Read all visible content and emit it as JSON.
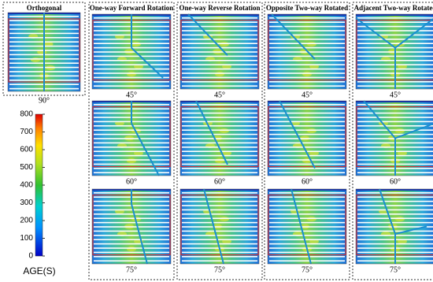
{
  "orthogonal": {
    "title": "Orthogonal",
    "angle": "90°"
  },
  "columns": [
    {
      "title": "One-way Forward Rotation",
      "angles": [
        "45°",
        "60°",
        "75°"
      ]
    },
    {
      "title": "One-way Reverse Rotation",
      "angles": [
        "45°",
        "60°",
        "75°"
      ]
    },
    {
      "title": "Opposite Two-way Rotated",
      "angles": [
        "45°",
        "60°",
        "75°"
      ]
    },
    {
      "title": "Adjacent Two-way Rotated",
      "angles": [
        "45°",
        "60°",
        "75°"
      ]
    }
  ],
  "colorbar": {
    "label": "AGE(S)",
    "ticks": [
      0,
      100,
      200,
      300,
      400,
      500,
      600,
      700,
      800
    ]
  }
}
